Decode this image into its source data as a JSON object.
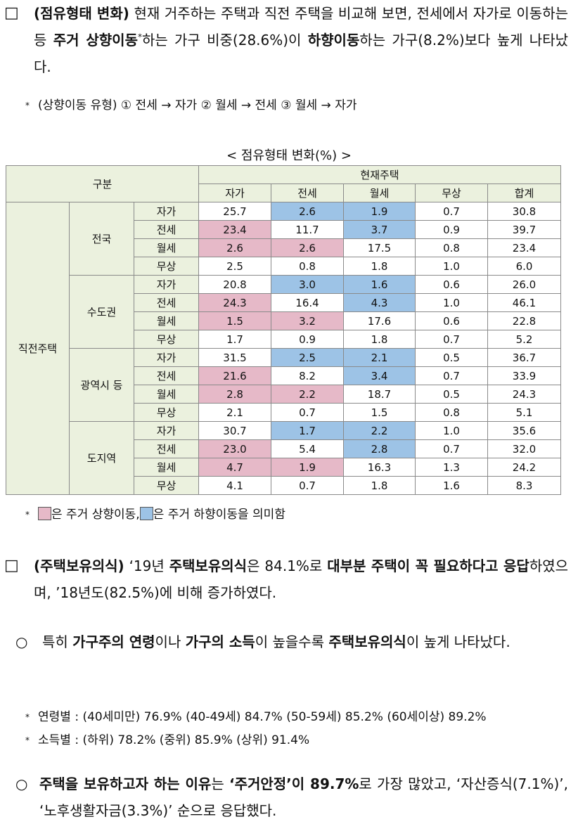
{
  "colors": {
    "up": "#e6b9c8",
    "down": "#9dc3e6",
    "header": "#ebf1de"
  },
  "section1": {
    "bullet": "□",
    "runs": [
      {
        "text": "(점유형태 변화)",
        "style": "bold"
      },
      {
        "text": " 현재 거주하는 주택과 직전 주택을 비교해 보면, 전세에서 자가로 이동하는 등 "
      },
      {
        "text": "주거 상향이동",
        "style": "bold"
      },
      {
        "text": "*",
        "style": "sup"
      },
      {
        "text": "하는 가구 비중(28.6%)이 "
      },
      {
        "text": "하향이동",
        "style": "bold"
      },
      {
        "text": "하는 가구(8.2%)보다 높게 나타났다."
      }
    ]
  },
  "note1": {
    "marker": "*",
    "text": "(상향이동 유형) ① 전세 → 자가 ② 월세 → 전세 ③ 월세 → 자가"
  },
  "table": {
    "title": "< 점유형태 변화(%) >",
    "corner": "구분",
    "column_group": "현재주택",
    "columns": [
      "자가",
      "전세",
      "월세",
      "무상",
      "합계"
    ],
    "group": "직전주택",
    "regions": [
      {
        "name": "전국",
        "rows": [
          {
            "label": "자가",
            "cells": [
              "25.7",
              "2.6",
              "1.9",
              "0.7",
              "30.8"
            ],
            "marks": [
              null,
              "down",
              "down",
              null,
              null
            ]
          },
          {
            "label": "전세",
            "cells": [
              "23.4",
              "11.7",
              "3.7",
              "0.9",
              "39.7"
            ],
            "marks": [
              "up",
              null,
              "down",
              null,
              null
            ]
          },
          {
            "label": "월세",
            "cells": [
              "2.6",
              "2.6",
              "17.5",
              "0.8",
              "23.4"
            ],
            "marks": [
              "up",
              "up",
              null,
              null,
              null
            ]
          },
          {
            "label": "무상",
            "cells": [
              "2.5",
              "0.8",
              "1.8",
              "1.0",
              "6.0"
            ],
            "marks": [
              null,
              null,
              null,
              null,
              null
            ]
          }
        ]
      },
      {
        "name": "수도권",
        "rows": [
          {
            "label": "자가",
            "cells": [
              "20.8",
              "3.0",
              "1.6",
              "0.6",
              "26.0"
            ],
            "marks": [
              null,
              "down",
              "down",
              null,
              null
            ]
          },
          {
            "label": "전세",
            "cells": [
              "24.3",
              "16.4",
              "4.3",
              "1.0",
              "46.1"
            ],
            "marks": [
              "up",
              null,
              "down",
              null,
              null
            ]
          },
          {
            "label": "월세",
            "cells": [
              "1.5",
              "3.2",
              "17.6",
              "0.6",
              "22.8"
            ],
            "marks": [
              "up",
              "up",
              null,
              null,
              null
            ]
          },
          {
            "label": "무상",
            "cells": [
              "1.7",
              "0.9",
              "1.8",
              "0.7",
              "5.2"
            ],
            "marks": [
              null,
              null,
              null,
              null,
              null
            ]
          }
        ]
      },
      {
        "name": "광역시 등",
        "rows": [
          {
            "label": "자가",
            "cells": [
              "31.5",
              "2.5",
              "2.1",
              "0.5",
              "36.7"
            ],
            "marks": [
              null,
              "down",
              "down",
              null,
              null
            ]
          },
          {
            "label": "전세",
            "cells": [
              "21.6",
              "8.2",
              "3.4",
              "0.7",
              "33.9"
            ],
            "marks": [
              "up",
              null,
              "down",
              null,
              null
            ]
          },
          {
            "label": "월세",
            "cells": [
              "2.8",
              "2.2",
              "18.7",
              "0.5",
              "24.3"
            ],
            "marks": [
              "up",
              "up",
              null,
              null,
              null
            ]
          },
          {
            "label": "무상",
            "cells": [
              "2.1",
              "0.7",
              "1.5",
              "0.8",
              "5.1"
            ],
            "marks": [
              null,
              null,
              null,
              null,
              null
            ]
          }
        ]
      },
      {
        "name": "도지역",
        "rows": [
          {
            "label": "자가",
            "cells": [
              "30.7",
              "1.7",
              "2.2",
              "1.0",
              "35.6"
            ],
            "marks": [
              null,
              "down",
              "down",
              null,
              null
            ]
          },
          {
            "label": "전세",
            "cells": [
              "23.0",
              "5.4",
              "2.8",
              "0.7",
              "32.0"
            ],
            "marks": [
              "up",
              null,
              "down",
              null,
              null
            ]
          },
          {
            "label": "월세",
            "cells": [
              "4.7",
              "1.9",
              "16.3",
              "1.3",
              "24.2"
            ],
            "marks": [
              "up",
              "up",
              null,
              null,
              null
            ]
          },
          {
            "label": "무상",
            "cells": [
              "4.1",
              "0.7",
              "1.8",
              "1.6",
              "8.3"
            ],
            "marks": [
              null,
              null,
              null,
              null,
              null
            ]
          }
        ]
      }
    ]
  },
  "legend": {
    "marker": "*",
    "items": [
      {
        "mark": "up",
        "text": "은 주거 상향이동,"
      },
      {
        "mark": "down",
        "text": "은 주거 하향이동을 의미함"
      }
    ]
  },
  "section2": {
    "bullet": "□",
    "runs": [
      {
        "text": "(주택보유의식)",
        "style": "bold"
      },
      {
        "text": " ‘19년 "
      },
      {
        "text": "주택보유의식",
        "style": "bold"
      },
      {
        "text": "은 84.1%로 "
      },
      {
        "text": "대부분 주택이 꼭 필요하다고 응답",
        "style": "bold"
      },
      {
        "text": "하였으며, ’18년도(82.5%)에 비해 증가하였다."
      }
    ]
  },
  "section3": {
    "bullet": "○",
    "runs": [
      {
        "text": "특히 "
      },
      {
        "text": "가구주의 연령",
        "style": "bold"
      },
      {
        "text": "이나 "
      },
      {
        "text": "가구의 소득",
        "style": "bold"
      },
      {
        "text": "이 높을수록 "
      },
      {
        "text": "주택보유의식",
        "style": "bold"
      },
      {
        "text": "이 높게 나타났다."
      }
    ],
    "notes": [
      {
        "marker": "*",
        "text": "연령별 : (40세미만) 76.9% (40-49세) 84.7% (50-59세) 85.2% (60세이상) 89.2%"
      },
      {
        "marker": "*",
        "text": "소득별 : (하위) 78.2% (중위) 85.9% (상위) 91.4%"
      }
    ]
  },
  "section4": {
    "bullet": "○",
    "runs": [
      {
        "text": "주택을 보유하고자 하는 이유",
        "style": "bold"
      },
      {
        "text": "는 "
      },
      {
        "text": "‘주거안정’이 89.7%",
        "style": "bold"
      },
      {
        "text": "로 가장 많았고, ‘자산증식(7.1%)’, ‘노후생활자금(3.3%)’ 순으로 응답했다."
      }
    ]
  }
}
